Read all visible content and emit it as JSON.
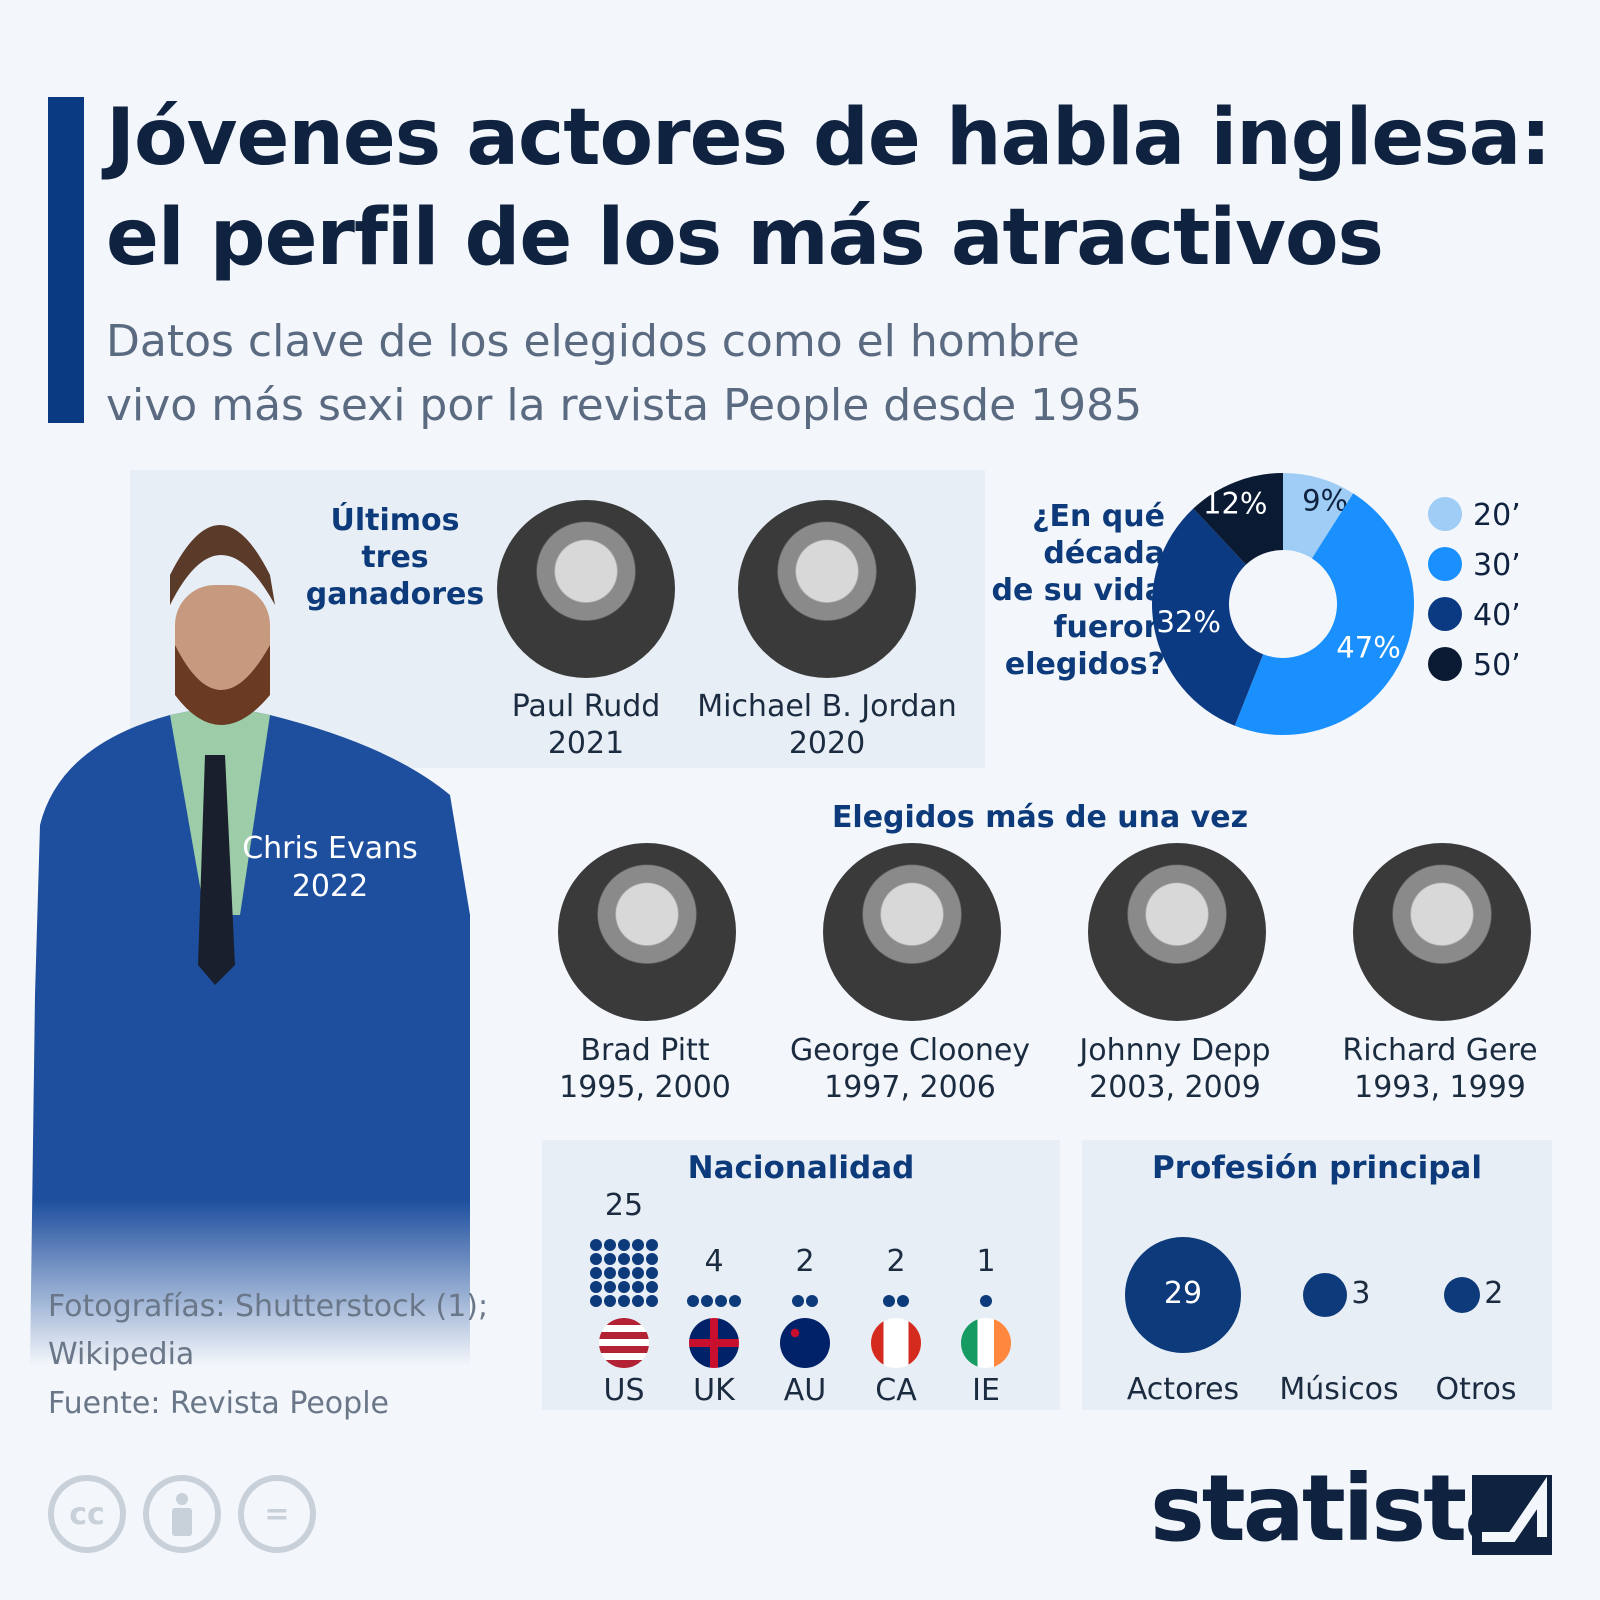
{
  "title": [
    "Jóvenes actores de habla inglesa:",
    "el perfil de los más atractivos"
  ],
  "subtitle": [
    "Datos clave de los elegidos como el hombre",
    "vivo más sexi por la revista People desde 1985"
  ],
  "featured": {
    "name": "Chris Evans",
    "year": "2022"
  },
  "last_winners": {
    "heading": [
      "Últimos",
      "tres",
      "ganadores"
    ],
    "people": [
      {
        "name": "Paul Rudd",
        "year": "2021"
      },
      {
        "name": "Michael B. Jordan",
        "year": "2020"
      }
    ]
  },
  "repeat": {
    "heading": "Elegidos más de una vez",
    "people": [
      {
        "name": "Brad Pitt",
        "years": "1995, 2000"
      },
      {
        "name": "George Clooney",
        "years": "1997, 2006"
      },
      {
        "name": "Johnny Depp",
        "years": "2003, 2009"
      },
      {
        "name": "Richard Gere",
        "years": "1993, 1999"
      }
    ]
  },
  "chart_data": [
    {
      "type": "pie",
      "donut": true,
      "title": [
        "¿En qué",
        "década",
        "de su vida",
        "fueron",
        "elegidos?"
      ],
      "categories": [
        "20’",
        "30’",
        "40’",
        "50’"
      ],
      "values": [
        9,
        47,
        32,
        12
      ],
      "labels": [
        "9%",
        "47%",
        "32%",
        "12%"
      ],
      "colors": [
        "#9fcdf5",
        "#1a90ff",
        "#0b3a82",
        "#0a1a33"
      ],
      "legend": "right"
    },
    {
      "type": "bar",
      "title": "Nacionalidad",
      "categories": [
        "US",
        "UK",
        "AU",
        "CA",
        "IE"
      ],
      "values": [
        25,
        4,
        2,
        2,
        1
      ],
      "style": "dot-pictogram"
    },
    {
      "type": "bubble",
      "title": "Profesión principal",
      "categories": [
        "Actores",
        "Músicos",
        "Otros"
      ],
      "values": [
        29,
        3,
        2
      ]
    }
  ],
  "credits": {
    "photos": [
      "Fotografías: Shutterstock (1);",
      "Wikipedia"
    ],
    "source": "Fuente: Revista People"
  },
  "license_icons": [
    "cc-icon",
    "attribution-icon",
    "no-derivatives-icon"
  ],
  "license_text": {
    "cc": "cc",
    "eq": "="
  },
  "brand": "statista",
  "colors": {
    "accent": "#0a3a82",
    "title": "#0f2340",
    "background": "#f3f6fa"
  }
}
